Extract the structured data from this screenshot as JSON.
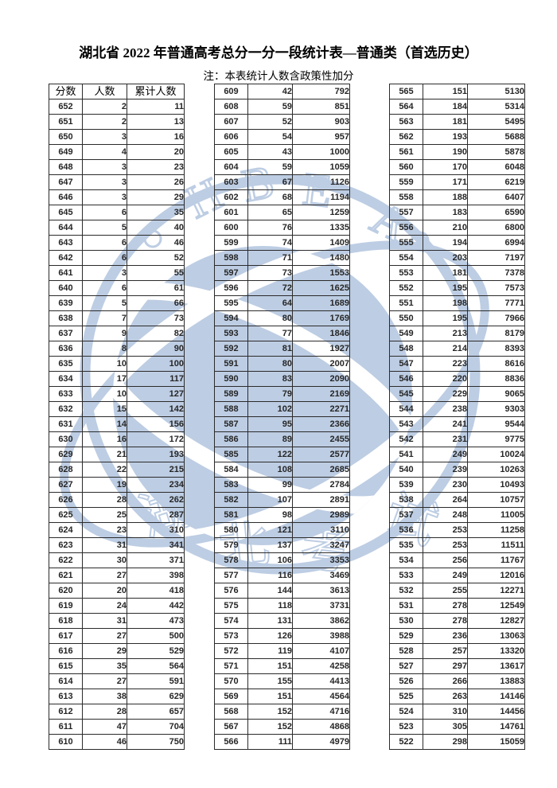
{
  "page": {
    "title": "湖北省 2022 年普通高考总分一分一段统计表—普通类（首选历史）",
    "note": "注：本表统计人数含政策性加分"
  },
  "table": {
    "headers": [
      "分数",
      "人数",
      "累计人数"
    ],
    "columns": [
      {
        "rows": [
          [
            652,
            2,
            11
          ],
          [
            651,
            2,
            13
          ],
          [
            650,
            3,
            16
          ],
          [
            649,
            4,
            20
          ],
          [
            648,
            3,
            23
          ],
          [
            647,
            3,
            26
          ],
          [
            646,
            3,
            29
          ],
          [
            645,
            6,
            35
          ],
          [
            644,
            5,
            40
          ],
          [
            643,
            6,
            46
          ],
          [
            642,
            6,
            52
          ],
          [
            641,
            3,
            55
          ],
          [
            640,
            6,
            61
          ],
          [
            639,
            5,
            66
          ],
          [
            638,
            7,
            73
          ],
          [
            637,
            9,
            82
          ],
          [
            636,
            8,
            90
          ],
          [
            635,
            10,
            100
          ],
          [
            634,
            17,
            117
          ],
          [
            633,
            10,
            127
          ],
          [
            632,
            15,
            142
          ],
          [
            631,
            14,
            156
          ],
          [
            630,
            16,
            172
          ],
          [
            629,
            21,
            193
          ],
          [
            628,
            22,
            215
          ],
          [
            627,
            19,
            234
          ],
          [
            626,
            28,
            262
          ],
          [
            625,
            25,
            287
          ],
          [
            624,
            23,
            310
          ],
          [
            623,
            31,
            341
          ],
          [
            622,
            30,
            371
          ],
          [
            621,
            27,
            398
          ],
          [
            620,
            20,
            418
          ],
          [
            619,
            24,
            442
          ],
          [
            618,
            31,
            473
          ],
          [
            617,
            27,
            500
          ],
          [
            616,
            29,
            529
          ],
          [
            615,
            35,
            564
          ],
          [
            614,
            27,
            591
          ],
          [
            613,
            38,
            629
          ],
          [
            612,
            28,
            657
          ],
          [
            611,
            47,
            704
          ],
          [
            610,
            46,
            750
          ]
        ]
      },
      {
        "rows": [
          [
            609,
            42,
            792
          ],
          [
            608,
            59,
            851
          ],
          [
            607,
            52,
            903
          ],
          [
            606,
            54,
            957
          ],
          [
            605,
            43,
            1000
          ],
          [
            604,
            59,
            1059
          ],
          [
            603,
            67,
            1126
          ],
          [
            602,
            68,
            1194
          ],
          [
            601,
            65,
            1259
          ],
          [
            600,
            76,
            1335
          ],
          [
            599,
            74,
            1409
          ],
          [
            598,
            71,
            1480
          ],
          [
            597,
            73,
            1553
          ],
          [
            596,
            72,
            1625
          ],
          [
            595,
            64,
            1689
          ],
          [
            594,
            80,
            1769
          ],
          [
            593,
            77,
            1846
          ],
          [
            592,
            81,
            1927
          ],
          [
            591,
            80,
            2007
          ],
          [
            590,
            83,
            2090
          ],
          [
            589,
            79,
            2169
          ],
          [
            588,
            102,
            2271
          ],
          [
            587,
            95,
            2366
          ],
          [
            586,
            89,
            2455
          ],
          [
            585,
            122,
            2577
          ],
          [
            584,
            108,
            2685
          ],
          [
            583,
            99,
            2784
          ],
          [
            582,
            107,
            2891
          ],
          [
            581,
            98,
            2989
          ],
          [
            580,
            121,
            3110
          ],
          [
            579,
            137,
            3247
          ],
          [
            578,
            106,
            3353
          ],
          [
            577,
            116,
            3469
          ],
          [
            576,
            144,
            3613
          ],
          [
            575,
            118,
            3731
          ],
          [
            574,
            131,
            3862
          ],
          [
            573,
            126,
            3988
          ],
          [
            572,
            119,
            4107
          ],
          [
            571,
            151,
            4258
          ],
          [
            570,
            155,
            4413
          ],
          [
            569,
            151,
            4564
          ],
          [
            568,
            152,
            4716
          ],
          [
            567,
            152,
            4868
          ],
          [
            566,
            111,
            4979
          ]
        ]
      },
      {
        "rows": [
          [
            565,
            151,
            5130
          ],
          [
            564,
            184,
            5314
          ],
          [
            563,
            181,
            5495
          ],
          [
            562,
            193,
            5688
          ],
          [
            561,
            190,
            5878
          ],
          [
            560,
            170,
            6048
          ],
          [
            559,
            171,
            6219
          ],
          [
            558,
            188,
            6407
          ],
          [
            557,
            183,
            6590
          ],
          [
            556,
            210,
            6800
          ],
          [
            555,
            194,
            6994
          ],
          [
            554,
            203,
            7197
          ],
          [
            553,
            181,
            7378
          ],
          [
            552,
            195,
            7573
          ],
          [
            551,
            198,
            7771
          ],
          [
            550,
            195,
            7966
          ],
          [
            549,
            213,
            8179
          ],
          [
            548,
            214,
            8393
          ],
          [
            547,
            223,
            8616
          ],
          [
            546,
            220,
            8836
          ],
          [
            545,
            229,
            9065
          ],
          [
            544,
            238,
            9303
          ],
          [
            543,
            241,
            9544
          ],
          [
            542,
            231,
            9775
          ],
          [
            541,
            249,
            10024
          ],
          [
            540,
            239,
            10263
          ],
          [
            539,
            230,
            10493
          ],
          [
            538,
            264,
            10757
          ],
          [
            537,
            248,
            11005
          ],
          [
            536,
            253,
            11258
          ],
          [
            535,
            253,
            11511
          ],
          [
            534,
            256,
            11767
          ],
          [
            533,
            249,
            12016
          ],
          [
            532,
            255,
            12271
          ],
          [
            531,
            278,
            12549
          ],
          [
            530,
            278,
            12827
          ],
          [
            529,
            236,
            13063
          ],
          [
            528,
            257,
            13320
          ],
          [
            527,
            297,
            13617
          ],
          [
            526,
            266,
            13883
          ],
          [
            525,
            263,
            14146
          ],
          [
            524,
            310,
            14456
          ],
          [
            523,
            305,
            14761
          ],
          [
            522,
            298,
            15059
          ]
        ]
      }
    ]
  },
  "watermark": {
    "letters": [
      "H",
      "B",
      "E",
      "A"
    ],
    "cjk_chars": [
      "湖",
      "北",
      "考",
      "试"
    ],
    "color": "#7d9dc8"
  }
}
